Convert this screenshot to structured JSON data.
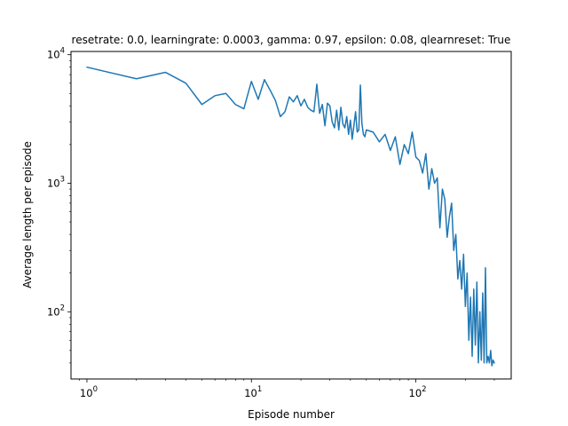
{
  "chart_data": {
    "type": "line",
    "title": "resetrate: 0.0, learningrate: 0.0003, gamma: 0.97, epsilon: 0.08, qlearnreset: True",
    "xlabel": "Episode number",
    "ylabel": "Average length per episode",
    "xscale": "log",
    "yscale": "log",
    "xlim": [
      0.8,
      380
    ],
    "ylim": [
      30,
      10600
    ],
    "grid": false,
    "line_color": "#1f77b4",
    "x_ticks": [
      {
        "value": 1,
        "base": "10",
        "exp": "0"
      },
      {
        "value": 10,
        "base": "10",
        "exp": "1"
      },
      {
        "value": 100,
        "base": "10",
        "exp": "2"
      }
    ],
    "y_ticks": [
      {
        "value": 100,
        "base": "10",
        "exp": "2"
      },
      {
        "value": 1000,
        "base": "10",
        "exp": "3"
      },
      {
        "value": 10000,
        "base": "10",
        "exp": "4"
      }
    ],
    "series": [
      {
        "x": [
          1,
          2,
          3,
          4,
          5,
          6,
          7,
          8,
          9,
          10,
          11,
          12,
          13,
          14,
          15,
          16,
          17,
          18,
          19,
          20,
          21,
          22,
          23,
          24,
          25,
          26,
          27,
          28,
          29,
          30,
          31,
          32,
          33,
          34,
          35,
          36,
          37,
          38,
          39,
          40,
          41,
          42,
          43,
          44,
          45,
          46,
          47,
          48,
          49,
          50,
          55,
          60,
          65,
          70,
          75,
          80,
          85,
          90,
          95,
          100,
          105,
          110,
          115,
          120,
          125,
          130,
          135,
          140,
          145,
          150,
          155,
          160,
          165,
          170,
          175,
          180,
          185,
          190,
          195,
          200,
          205,
          210,
          215,
          220,
          225,
          230,
          235,
          240,
          245,
          250,
          255,
          260,
          265,
          270,
          275,
          280,
          285,
          290,
          295,
          300
        ],
        "y": [
          8000,
          6500,
          7300,
          6000,
          4100,
          4800,
          5000,
          4100,
          3800,
          6200,
          4500,
          6400,
          5300,
          4400,
          3300,
          3600,
          4700,
          4300,
          4800,
          4000,
          4500,
          3900,
          3700,
          3600,
          5900,
          3500,
          4100,
          2800,
          4200,
          4000,
          3000,
          2700,
          3700,
          2600,
          3900,
          2900,
          2700,
          3300,
          2400,
          3100,
          2200,
          2800,
          3600,
          2500,
          2600,
          5800,
          2900,
          2400,
          2300,
          2600,
          2500,
          2100,
          2400,
          1800,
          2300,
          1400,
          2000,
          1700,
          2500,
          1600,
          1500,
          1200,
          1700,
          900,
          1300,
          1000,
          1100,
          450,
          900,
          750,
          380,
          550,
          700,
          300,
          400,
          180,
          250,
          150,
          280,
          110,
          200,
          60,
          130,
          45,
          150,
          55,
          170,
          40,
          100,
          42,
          140,
          40,
          220,
          40,
          45,
          40,
          50,
          38,
          42,
          40
        ]
      }
    ]
  }
}
